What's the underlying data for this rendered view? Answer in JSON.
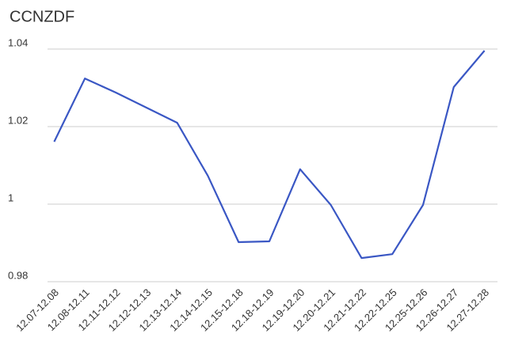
{
  "chart_data": {
    "type": "line",
    "title": "CCNZDF",
    "categories": [
      "12.07-12.08",
      "12.08-12.11",
      "12.11-12.12",
      "12.12-12.13",
      "12.13-12.14",
      "12.14-12.15",
      "12.15-12.18",
      "12.18-12.19",
      "12.19-12.20",
      "12.20-12.21",
      "12.21-12.22",
      "12.22-12.25",
      "12.25-12.26",
      "12.26-12.27",
      "12.27-12.28"
    ],
    "values": [
      1.0161,
      1.0324,
      1.0288,
      1.0249,
      1.021,
      1.0073,
      0.9902,
      0.9904,
      1.009,
      0.9998,
      0.9861,
      0.9871,
      0.9998,
      1.0302,
      1.0396
    ],
    "color": "#3a57c4",
    "ylim": [
      0.98,
      1.04
    ],
    "yticks": [
      0.98,
      1,
      1.02,
      1.04
    ],
    "grid": true
  }
}
